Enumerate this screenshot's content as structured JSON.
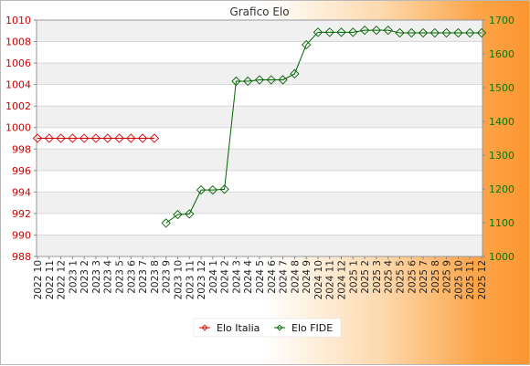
{
  "chart_data": {
    "type": "line",
    "title": "Grafico Elo",
    "categories": [
      "2022 10",
      "2022 11",
      "2022 12",
      "2023 1",
      "2023 2",
      "2023 3",
      "2023 4",
      "2023 5",
      "2023 6",
      "2023 7",
      "2023 8",
      "2023 9",
      "2023 10",
      "2023 11",
      "2023 12",
      "2024 1",
      "2024 2",
      "2024 3",
      "2024 4",
      "2024 5",
      "2024 6",
      "2024 7",
      "2024 8",
      "2024 9",
      "2024 10",
      "2024 11",
      "2024 12",
      "2025 1",
      "2025 2",
      "2025 3",
      "2025 4",
      "2025 5",
      "2025 6",
      "2025 7",
      "2025 8",
      "2025 9",
      "2025 10",
      "2025 11",
      "2025 12"
    ],
    "y_left": {
      "ylim": [
        988,
        1010
      ],
      "ticks": [
        988,
        990,
        992,
        994,
        996,
        998,
        1000,
        1002,
        1004,
        1006,
        1008,
        1010
      ],
      "color": "#cc0000"
    },
    "y_right": {
      "ylim": [
        1000,
        1700
      ],
      "ticks": [
        1000,
        1100,
        1200,
        1300,
        1400,
        1500,
        1600,
        1700
      ],
      "color": "#007a00"
    },
    "series": [
      {
        "name": "Elo Italia",
        "axis": "left",
        "color": "#d40000",
        "values": [
          999,
          999,
          999,
          999,
          999,
          999,
          999,
          999,
          999,
          999,
          999,
          null,
          null,
          null,
          null,
          null,
          null,
          null,
          null,
          null,
          null,
          null,
          null,
          null,
          null,
          null,
          null,
          null,
          null,
          null,
          null,
          null,
          null,
          null,
          null,
          null,
          null,
          null,
          null
        ]
      },
      {
        "name": "Elo FIDE",
        "axis": "right",
        "color": "#006400",
        "values": [
          null,
          null,
          null,
          null,
          null,
          null,
          null,
          null,
          null,
          null,
          null,
          1099,
          1124,
          1126,
          1197,
          1197,
          1199,
          1519,
          1519,
          1523,
          1523,
          1523,
          1541,
          1627,
          1664,
          1664,
          1664,
          1664,
          1670,
          1670,
          1670,
          1662,
          1662,
          1662,
          1662,
          1662,
          1662,
          1662,
          1662
        ]
      }
    ],
    "grid": true,
    "legend_position": "bottom-center"
  }
}
